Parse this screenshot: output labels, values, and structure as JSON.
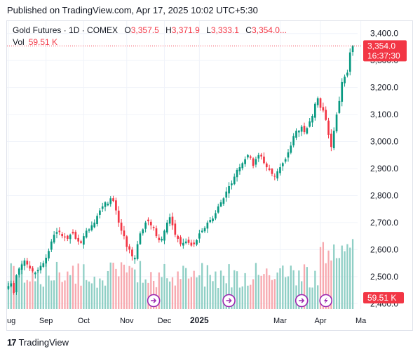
{
  "header": {
    "published": "Published on TradingView.com, Apr 17, 2025 10:02 UTC+5:30"
  },
  "legend": {
    "name": "Gold Futures · 1D · COMEX",
    "o_label": "O",
    "o": "3,357.5",
    "h_label": "H",
    "h": "3,371.9",
    "l_label": "L",
    "l": "3,333.1",
    "c_label": "C",
    "c": "3,354.0...",
    "vol_label": "Vol",
    "vol": "59.51 K"
  },
  "price_tag": {
    "price": "3,354.0",
    "countdown": "16:37:30"
  },
  "vol_tag": "59.51 K",
  "footer": {
    "logo": "17",
    "brand": "TradingView"
  },
  "colors": {
    "up": "#089981",
    "down": "#f23645",
    "vol_up": "#8fcfc5",
    "vol_down": "#f7a9af",
    "event": "#9c27b0",
    "grid": "#f0f3fa"
  },
  "chart_data": {
    "type": "candlestick",
    "ylim": [
      2380,
      3420
    ],
    "y_ticks": [
      "3,400.0",
      "3,300.0",
      "3,200.0",
      "3,100.0",
      "3,000.0",
      "2,900.0",
      "2,800.0",
      "2,700.0",
      "2,600.0",
      "2,500.0",
      "2,400.0"
    ],
    "y_tick_values": [
      3400,
      3300,
      3200,
      3100,
      3000,
      2900,
      2800,
      2700,
      2600,
      2500,
      2400
    ],
    "x_ticks": [
      "ug",
      "Sep",
      "Oct",
      "Nov",
      "Dec",
      "2025",
      "Mar",
      "Apr",
      "Ma"
    ],
    "x_tick_bold": [
      false,
      false,
      false,
      false,
      false,
      true,
      false,
      false,
      false
    ],
    "x_tick_index": [
      0,
      14,
      28,
      44,
      58,
      71,
      101,
      116,
      131
    ],
    "close_path": [
      2465,
      2475,
      2440,
      2505,
      2530,
      2545,
      2560,
      2545,
      2530,
      2520,
      2515,
      2525,
      2540,
      2550,
      2570,
      2595,
      2630,
      2655,
      2665,
      2665,
      2650,
      2645,
      2640,
      2655,
      2660,
      2640,
      2630,
      2625,
      2650,
      2670,
      2675,
      2690,
      2700,
      2725,
      2745,
      2760,
      2775,
      2770,
      2790,
      2780,
      2745,
      2700,
      2670,
      2650,
      2610,
      2600,
      2575,
      2570,
      2620,
      2660,
      2675,
      2700,
      2705,
      2690,
      2680,
      2650,
      2635,
      2640,
      2670,
      2700,
      2720,
      2690,
      2655,
      2640,
      2620,
      2625,
      2630,
      2625,
      2615,
      2620,
      2635,
      2660,
      2670,
      2680,
      2700,
      2710,
      2715,
      2735,
      2760,
      2775,
      2790,
      2815,
      2835,
      2845,
      2870,
      2895,
      2905,
      2920,
      2935,
      2950,
      2940,
      2910,
      2935,
      2950,
      2945,
      2920,
      2905,
      2895,
      2880,
      2870,
      2890,
      2905,
      2920,
      2935,
      2960,
      2985,
      3020,
      3040,
      3040,
      3055,
      3035,
      3050,
      3075,
      3095,
      3140,
      3160,
      3125,
      3115,
      3080,
      3025,
      2980,
      3040,
      3100,
      3150,
      3220,
      3240,
      3255,
      3330,
      3354
    ]
  }
}
